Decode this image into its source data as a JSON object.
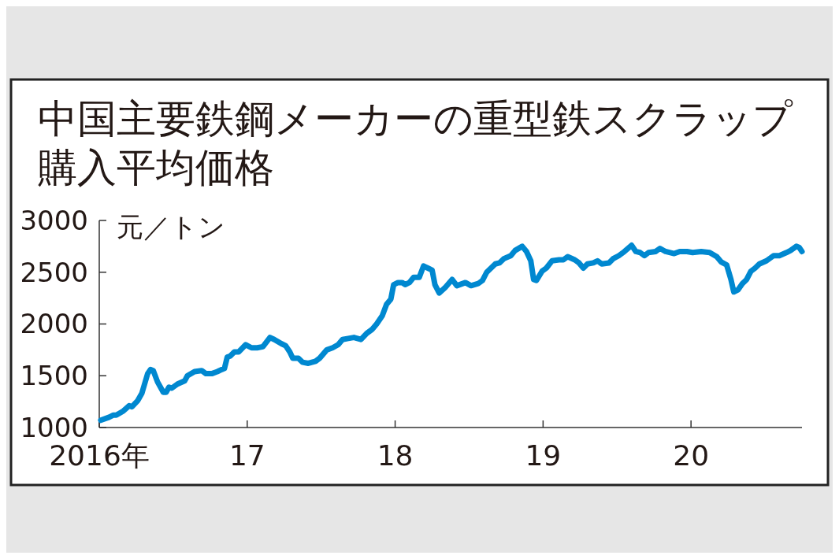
{
  "chart_data": {
    "type": "line",
    "title": "中国主要鉄鋼メーカーの重型鉄スクラップ購入平均価格",
    "ylabel": "元／トン",
    "x": [
      2016.01,
      2016.067,
      2016.096,
      2016.115,
      2016.163,
      2016.202,
      2016.221,
      2016.26,
      2016.288,
      2016.327,
      2016.346,
      2016.365,
      2016.394,
      2016.433,
      2016.452,
      2016.471,
      2016.49,
      2016.529,
      2016.577,
      2016.596,
      2016.644,
      2016.692,
      2016.721,
      2016.76,
      2016.798,
      2016.827,
      2016.846,
      2016.865,
      2016.885,
      2016.913,
      2016.942,
      2016.99,
      2017.029,
      2017.067,
      2017.106,
      2017.154,
      2017.183,
      2017.231,
      2017.26,
      2017.288,
      2017.308,
      2017.346,
      2017.375,
      2017.413,
      2017.462,
      2017.49,
      2017.538,
      2017.577,
      2017.615,
      2017.644,
      2017.683,
      2017.721,
      2017.769,
      2017.808,
      2017.846,
      2017.875,
      2017.913,
      2017.942,
      2017.971,
      2017.99,
      2018.019,
      2018.048,
      2018.067,
      2018.096,
      2018.125,
      2018.163,
      2018.192,
      2018.221,
      2018.25,
      2018.269,
      2018.298,
      2018.337,
      2018.385,
      2018.417,
      2018.475,
      2018.513,
      2018.561,
      2018.59,
      2018.619,
      2018.648,
      2018.677,
      2018.705,
      2018.734,
      2018.782,
      2018.811,
      2018.859,
      2018.888,
      2018.917,
      2018.936,
      2018.955,
      2018.993,
      2019.022,
      2019.06,
      2019.108,
      2019.137,
      2019.166,
      2019.214,
      2019.243,
      2019.272,
      2019.3,
      2019.339,
      2019.368,
      2019.396,
      2019.445,
      2019.473,
      2019.512,
      2019.55,
      2019.598,
      2019.627,
      2019.656,
      2019.685,
      2019.713,
      2019.761,
      2019.79,
      2019.828,
      2019.886,
      2019.924,
      2019.973,
      2020.011,
      2020.069,
      2020.126,
      2020.174,
      2020.203,
      2020.241,
      2020.27,
      2020.289,
      2020.318,
      2020.347,
      2020.376,
      2020.405,
      2020.433,
      2020.462,
      2020.51,
      2020.558,
      2020.597,
      2020.645,
      2020.673,
      2020.712,
      2020.731,
      2020.75
    ],
    "series": [
      {
        "color": "#0088d0",
        "values": [
          1070,
          1100,
          1120,
          1120,
          1160,
          1210,
          1200,
          1260,
          1330,
          1520,
          1560,
          1550,
          1440,
          1340,
          1340,
          1390,
          1380,
          1420,
          1450,
          1500,
          1540,
          1550,
          1520,
          1520,
          1540,
          1560,
          1570,
          1680,
          1690,
          1730,
          1730,
          1800,
          1770,
          1770,
          1780,
          1870,
          1850,
          1810,
          1790,
          1730,
          1670,
          1670,
          1630,
          1620,
          1640,
          1670,
          1750,
          1770,
          1800,
          1850,
          1860,
          1870,
          1850,
          1910,
          1950,
          2000,
          2080,
          2190,
          2240,
          2380,
          2400,
          2400,
          2380,
          2400,
          2450,
          2450,
          2560,
          2540,
          2520,
          2380,
          2300,
          2350,
          2430,
          2370,
          2400,
          2370,
          2390,
          2420,
          2500,
          2540,
          2580,
          2590,
          2630,
          2660,
          2710,
          2750,
          2700,
          2610,
          2430,
          2420,
          2510,
          2540,
          2610,
          2620,
          2620,
          2650,
          2620,
          2590,
          2540,
          2580,
          2590,
          2610,
          2580,
          2590,
          2630,
          2660,
          2700,
          2760,
          2700,
          2690,
          2660,
          2690,
          2700,
          2730,
          2700,
          2680,
          2700,
          2700,
          2690,
          2700,
          2690,
          2650,
          2600,
          2570,
          2430,
          2310,
          2330,
          2390,
          2430,
          2510,
          2540,
          2580,
          2610,
          2660,
          2660,
          2690,
          2710,
          2750,
          2740,
          2700
        ]
      }
    ],
    "xlim": [
      2016,
      2020.75
    ],
    "xticks": [
      {
        "value": 2016,
        "label": "2016年"
      },
      {
        "value": 2017,
        "label": "17"
      },
      {
        "value": 2018,
        "label": "18"
      },
      {
        "value": 2019,
        "label": "19"
      },
      {
        "value": 2020,
        "label": "20"
      }
    ],
    "ylim": [
      1000,
      3000
    ],
    "yticks": [
      1000,
      1500,
      2000,
      2500,
      3000
    ]
  }
}
